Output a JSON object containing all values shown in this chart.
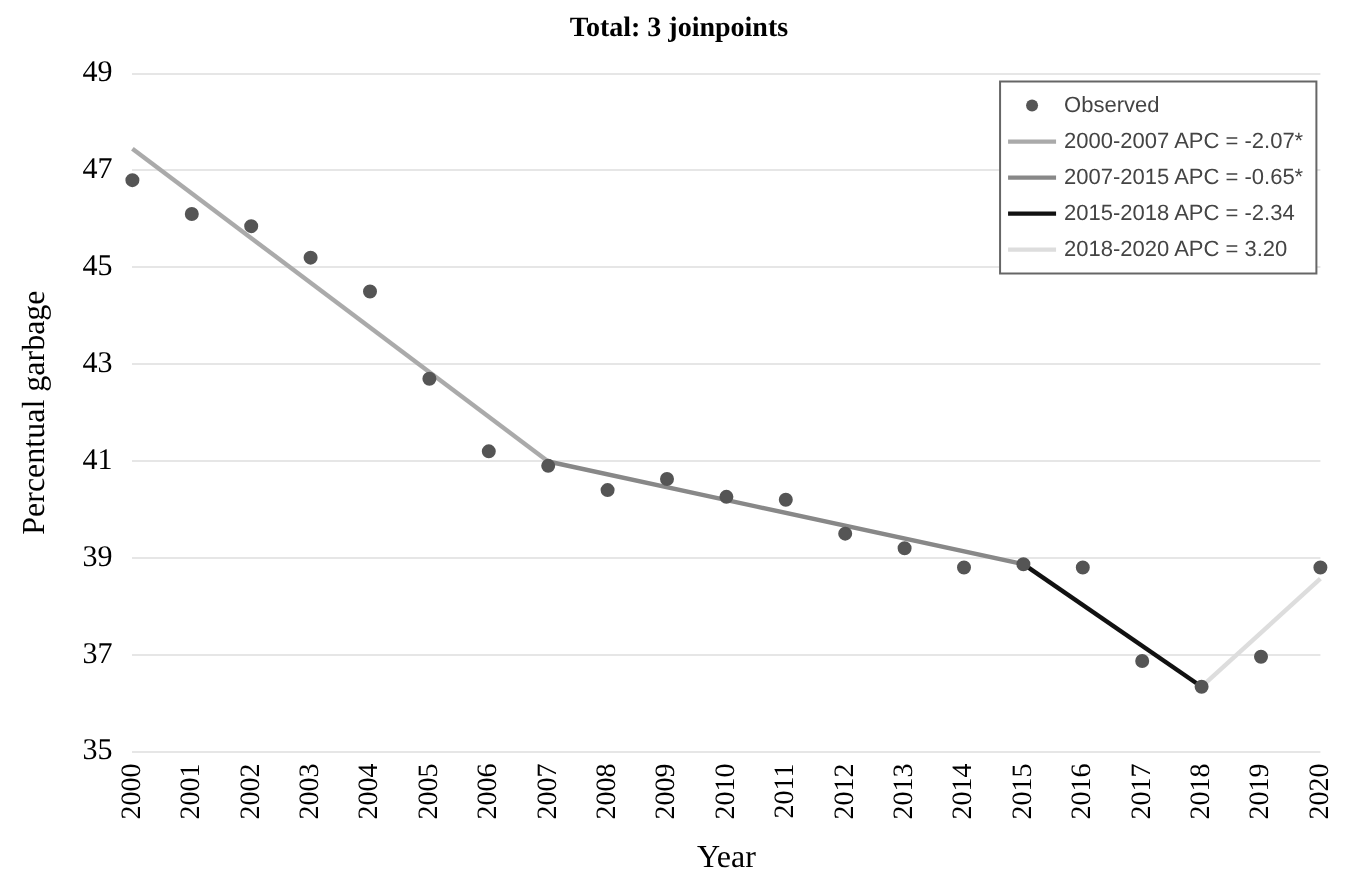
{
  "chart_data": {
    "type": "scatter",
    "title": "Total: 3 joinpoints",
    "xlabel": "Year",
    "ylabel": "Percentual garbage",
    "categories": [
      "2000",
      "2001",
      "2002",
      "2003",
      "2004",
      "2005",
      "2006",
      "2007",
      "2008",
      "2009",
      "2010",
      "2011",
      "2012",
      "2013",
      "2014",
      "2015",
      "2016",
      "2017",
      "2018",
      "2019",
      "2020"
    ],
    "ylim": [
      35,
      49
    ],
    "yticks": [
      35,
      37,
      39,
      41,
      43,
      45,
      47,
      49
    ],
    "grid": "y",
    "legend": "top right",
    "marker": "circle",
    "series": [
      {
        "name": "Observed",
        "color": "#555555",
        "values": [
          46.8,
          46.1,
          45.85,
          45.2,
          44.5,
          42.7,
          41.2,
          40.9,
          40.4,
          40.63,
          40.26,
          40.2,
          39.5,
          39.2,
          38.8,
          38.87,
          38.8,
          36.87,
          36.34,
          36.96,
          38.8
        ]
      },
      {
        "name": "2000-2007 APC = -2.07*",
        "type": "line",
        "color": "#aaaaaa",
        "marker": "none",
        "values": [
          47.45,
          null,
          null,
          null,
          null,
          null,
          null,
          40.99,
          null,
          null,
          null,
          null,
          null,
          null,
          null,
          null,
          null,
          null,
          null,
          null,
          null
        ]
      },
      {
        "name": "2007-2015 APC = -0.65*",
        "type": "line",
        "color": "#888888",
        "marker": "none",
        "values": [
          null,
          null,
          null,
          null,
          null,
          null,
          null,
          40.99,
          null,
          null,
          null,
          null,
          null,
          null,
          null,
          38.87,
          null,
          null,
          null,
          null,
          null
        ]
      },
      {
        "name": "2015-2018 APC = -2.34",
        "type": "line",
        "color": "#111111",
        "marker": "none",
        "values": [
          null,
          null,
          null,
          null,
          null,
          null,
          null,
          null,
          null,
          null,
          null,
          null,
          null,
          null,
          null,
          38.87,
          null,
          null,
          36.34,
          null,
          null
        ]
      },
      {
        "name": "2018-2020 APC = 3.20",
        "type": "line",
        "color": "#dddddd",
        "marker": "none",
        "values": [
          null,
          null,
          null,
          null,
          null,
          null,
          null,
          null,
          null,
          null,
          null,
          null,
          null,
          null,
          null,
          null,
          null,
          null,
          36.34,
          null,
          38.57
        ]
      }
    ]
  }
}
